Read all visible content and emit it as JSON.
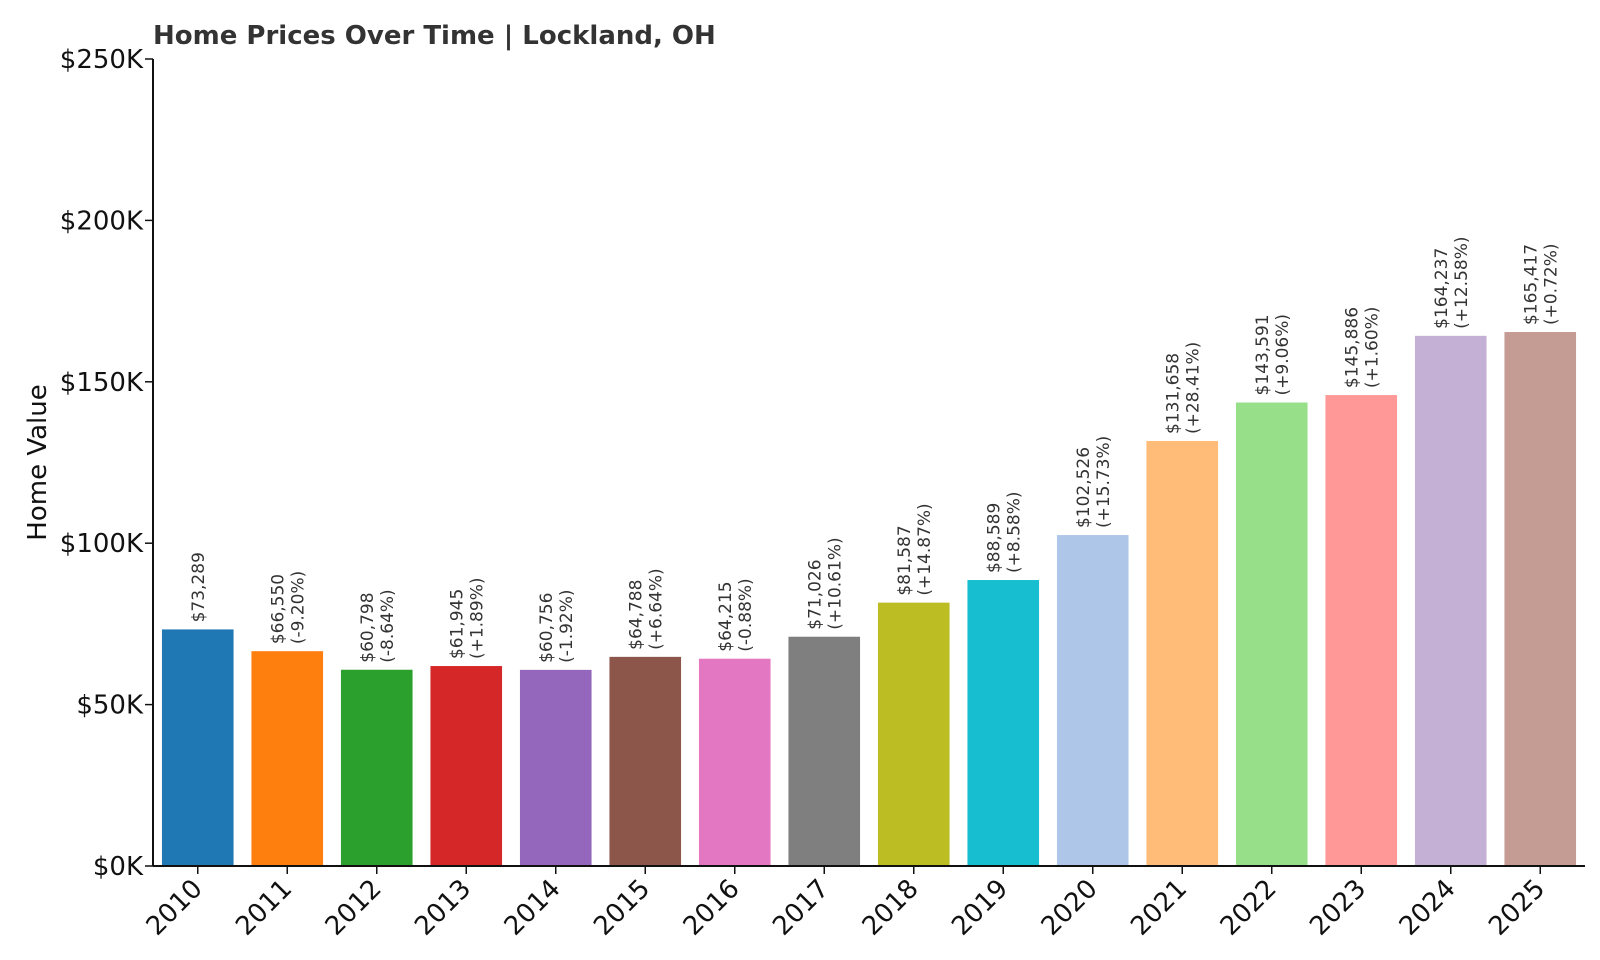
{
  "chart_data": {
    "type": "bar",
    "title": "Home Prices Over Time | Lockland, OH",
    "xlabel": "",
    "ylabel": "Home Value",
    "ylim": [
      0,
      250000
    ],
    "yticks": [
      0,
      50000,
      100000,
      150000,
      200000,
      250000
    ],
    "ytick_labels": [
      "$0K",
      "$50K",
      "$100K",
      "$150K",
      "$200K",
      "$250K"
    ],
    "grid": false,
    "categories": [
      "2010",
      "2011",
      "2012",
      "2013",
      "2014",
      "2015",
      "2016",
      "2017",
      "2018",
      "2019",
      "2020",
      "2021",
      "2022",
      "2023",
      "2024",
      "2025"
    ],
    "values": [
      73289,
      66550,
      60798,
      61945,
      60756,
      64788,
      64215,
      71026,
      81587,
      88589,
      102526,
      131658,
      143591,
      145886,
      164237,
      165417
    ],
    "value_labels": [
      "$73,289",
      "$66,550",
      "$60,798",
      "$61,945",
      "$60,756",
      "$64,788",
      "$64,215",
      "$71,026",
      "$81,587",
      "$88,589",
      "$102,526",
      "$131,658",
      "$143,591",
      "$145,886",
      "$164,237",
      "$165,417"
    ],
    "change_labels": [
      "",
      "(-9.20%)",
      "(-8.64%)",
      "(+1.89%)",
      "(-1.92%)",
      "(+6.64%)",
      "(-0.88%)",
      "(+10.61%)",
      "(+14.87%)",
      "(+8.58%)",
      "(+15.73%)",
      "(+28.41%)",
      "(+9.06%)",
      "(+1.60%)",
      "(+12.58%)",
      "(+0.72%)"
    ],
    "colors": [
      "#1f77b4",
      "#ff7f0e",
      "#2ca02c",
      "#d62728",
      "#9467bd",
      "#8c564b",
      "#e377c2",
      "#7f7f7f",
      "#bcbd22",
      "#17becf",
      "#aec7e8",
      "#ffbb78",
      "#98df8a",
      "#ff9896",
      "#c5b0d5",
      "#c49c94"
    ]
  }
}
